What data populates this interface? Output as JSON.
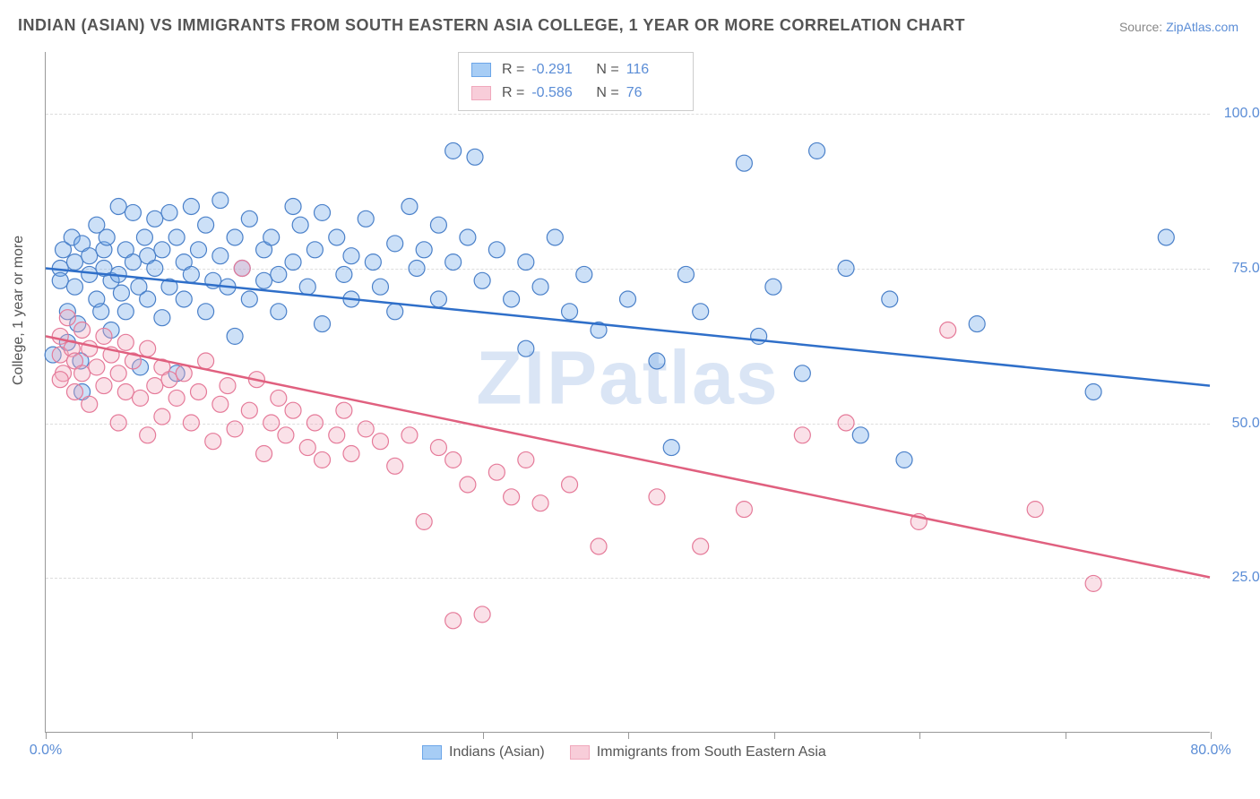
{
  "title": "INDIAN (ASIAN) VS IMMIGRANTS FROM SOUTH EASTERN ASIA COLLEGE, 1 YEAR OR MORE CORRELATION CHART",
  "source_prefix": "Source: ",
  "source_site": "ZipAtlas.com",
  "ylabel": "College, 1 year or more",
  "watermark": "ZIPatlas",
  "chart": {
    "type": "scatter",
    "background_color": "#ffffff",
    "grid_color": "#dddddd",
    "axis_color": "#999999",
    "xlim": [
      0,
      80
    ],
    "ylim": [
      0,
      110
    ],
    "xtick_positions": [
      0,
      10,
      20,
      30,
      40,
      50,
      60,
      70,
      80
    ],
    "xtick_labels": {
      "0": "0.0%",
      "80": "80.0%"
    },
    "ytick_positions": [
      25,
      50,
      75,
      100
    ],
    "ytick_labels": {
      "25": "25.0%",
      "50": "50.0%",
      "75": "75.0%",
      "100": "100.0%"
    },
    "tick_label_color": "#5b8dd6",
    "tick_label_fontsize": 16,
    "marker_radius": 9,
    "marker_fill_opacity": 0.35,
    "marker_stroke_width": 1.2,
    "line_width": 2.5,
    "series": [
      {
        "name": "Indians (Asian)",
        "color": "#6ca6e8",
        "stroke": "#4a80c9",
        "line_color": "#2f6fc9",
        "R": "-0.291",
        "N": "116",
        "trend": {
          "x1": 0,
          "y1": 75,
          "x2": 80,
          "y2": 56
        },
        "points": [
          [
            1,
            75
          ],
          [
            1,
            73
          ],
          [
            1.2,
            78
          ],
          [
            1.5,
            68
          ],
          [
            1.5,
            63
          ],
          [
            1.8,
            80
          ],
          [
            2,
            76
          ],
          [
            2,
            72
          ],
          [
            2.2,
            66
          ],
          [
            2.4,
            60
          ],
          [
            2.5,
            79
          ],
          [
            2.5,
            55
          ],
          [
            3,
            77
          ],
          [
            3,
            74
          ],
          [
            3.5,
            82
          ],
          [
            3.5,
            70
          ],
          [
            3.8,
            68
          ],
          [
            4,
            78
          ],
          [
            4,
            75
          ],
          [
            4.2,
            80
          ],
          [
            4.5,
            73
          ],
          [
            4.5,
            65
          ],
          [
            5,
            85
          ],
          [
            5,
            74
          ],
          [
            5.2,
            71
          ],
          [
            5.5,
            78
          ],
          [
            5.5,
            68
          ],
          [
            6,
            84
          ],
          [
            6,
            76
          ],
          [
            6.4,
            72
          ],
          [
            6.5,
            59
          ],
          [
            6.8,
            80
          ],
          [
            7,
            77
          ],
          [
            7,
            70
          ],
          [
            7.5,
            83
          ],
          [
            7.5,
            75
          ],
          [
            8,
            78
          ],
          [
            8,
            67
          ],
          [
            8.5,
            84
          ],
          [
            8.5,
            72
          ],
          [
            9,
            80
          ],
          [
            9,
            58
          ],
          [
            9.5,
            76
          ],
          [
            9.5,
            70
          ],
          [
            10,
            85
          ],
          [
            10,
            74
          ],
          [
            10.5,
            78
          ],
          [
            11,
            82
          ],
          [
            11,
            68
          ],
          [
            11.5,
            73
          ],
          [
            12,
            86
          ],
          [
            12,
            77
          ],
          [
            12.5,
            72
          ],
          [
            13,
            80
          ],
          [
            13,
            64
          ],
          [
            13.5,
            75
          ],
          [
            14,
            83
          ],
          [
            14,
            70
          ],
          [
            15,
            78
          ],
          [
            15,
            73
          ],
          [
            15.5,
            80
          ],
          [
            16,
            74
          ],
          [
            16,
            68
          ],
          [
            17,
            85
          ],
          [
            17,
            76
          ],
          [
            17.5,
            82
          ],
          [
            18,
            72
          ],
          [
            18.5,
            78
          ],
          [
            19,
            84
          ],
          [
            19,
            66
          ],
          [
            20,
            80
          ],
          [
            20.5,
            74
          ],
          [
            21,
            77
          ],
          [
            21,
            70
          ],
          [
            22,
            83
          ],
          [
            22.5,
            76
          ],
          [
            23,
            72
          ],
          [
            24,
            79
          ],
          [
            24,
            68
          ],
          [
            25,
            85
          ],
          [
            25.5,
            75
          ],
          [
            26,
            78
          ],
          [
            27,
            82
          ],
          [
            27,
            70
          ],
          [
            28,
            94
          ],
          [
            28,
            76
          ],
          [
            29,
            80
          ],
          [
            29.5,
            93
          ],
          [
            30,
            73
          ],
          [
            31,
            78
          ],
          [
            32,
            70
          ],
          [
            33,
            76
          ],
          [
            33,
            62
          ],
          [
            34,
            72
          ],
          [
            35,
            80
          ],
          [
            36,
            68
          ],
          [
            37,
            74
          ],
          [
            38,
            65
          ],
          [
            40,
            70
          ],
          [
            42,
            60
          ],
          [
            43,
            46
          ],
          [
            44,
            74
          ],
          [
            45,
            68
          ],
          [
            48,
            92
          ],
          [
            49,
            64
          ],
          [
            50,
            72
          ],
          [
            52,
            58
          ],
          [
            53,
            94
          ],
          [
            55,
            75
          ],
          [
            56,
            48
          ],
          [
            58,
            70
          ],
          [
            59,
            44
          ],
          [
            64,
            66
          ],
          [
            72,
            55
          ],
          [
            77,
            80
          ],
          [
            0.5,
            61
          ]
        ]
      },
      {
        "name": "Immigrants from South Eastern Asia",
        "color": "#f0a8bc",
        "stroke": "#e57a99",
        "line_color": "#e0607f",
        "R": "-0.586",
        "N": "76",
        "trend": {
          "x1": 0,
          "y1": 64,
          "x2": 80,
          "y2": 25
        },
        "points": [
          [
            1,
            64
          ],
          [
            1,
            61
          ],
          [
            1.2,
            58
          ],
          [
            1.5,
            67
          ],
          [
            1.8,
            62
          ],
          [
            2,
            60
          ],
          [
            2,
            55
          ],
          [
            2.5,
            65
          ],
          [
            2.5,
            58
          ],
          [
            3,
            62
          ],
          [
            3,
            53
          ],
          [
            3.5,
            59
          ],
          [
            4,
            64
          ],
          [
            4,
            56
          ],
          [
            4.5,
            61
          ],
          [
            5,
            58
          ],
          [
            5,
            50
          ],
          [
            5.5,
            63
          ],
          [
            5.5,
            55
          ],
          [
            6,
            60
          ],
          [
            6.5,
            54
          ],
          [
            7,
            62
          ],
          [
            7,
            48
          ],
          [
            7.5,
            56
          ],
          [
            8,
            59
          ],
          [
            8,
            51
          ],
          [
            8.5,
            57
          ],
          [
            9,
            54
          ],
          [
            9.5,
            58
          ],
          [
            10,
            50
          ],
          [
            10.5,
            55
          ],
          [
            11,
            60
          ],
          [
            11.5,
            47
          ],
          [
            12,
            53
          ],
          [
            12.5,
            56
          ],
          [
            13,
            49
          ],
          [
            13.5,
            75
          ],
          [
            14,
            52
          ],
          [
            14.5,
            57
          ],
          [
            15,
            45
          ],
          [
            15.5,
            50
          ],
          [
            16,
            54
          ],
          [
            16.5,
            48
          ],
          [
            17,
            52
          ],
          [
            18,
            46
          ],
          [
            18.5,
            50
          ],
          [
            19,
            44
          ],
          [
            20,
            48
          ],
          [
            20.5,
            52
          ],
          [
            21,
            45
          ],
          [
            22,
            49
          ],
          [
            23,
            47
          ],
          [
            24,
            43
          ],
          [
            25,
            48
          ],
          [
            26,
            34
          ],
          [
            27,
            46
          ],
          [
            28,
            18
          ],
          [
            28,
            44
          ],
          [
            29,
            40
          ],
          [
            30,
            19
          ],
          [
            31,
            42
          ],
          [
            32,
            38
          ],
          [
            33,
            44
          ],
          [
            34,
            37
          ],
          [
            36,
            40
          ],
          [
            38,
            30
          ],
          [
            42,
            38
          ],
          [
            45,
            30
          ],
          [
            48,
            36
          ],
          [
            52,
            48
          ],
          [
            55,
            50
          ],
          [
            60,
            34
          ],
          [
            62,
            65
          ],
          [
            68,
            36
          ],
          [
            72,
            24
          ],
          [
            1,
            57
          ]
        ]
      }
    ]
  },
  "legend_bottom": [
    {
      "label": "Indians (Asian)",
      "fill": "#a7cdf5",
      "stroke": "#6ca6e8"
    },
    {
      "label": "Immigrants from South Eastern Asia",
      "fill": "#f8cdd9",
      "stroke": "#f0a8bc"
    }
  ]
}
